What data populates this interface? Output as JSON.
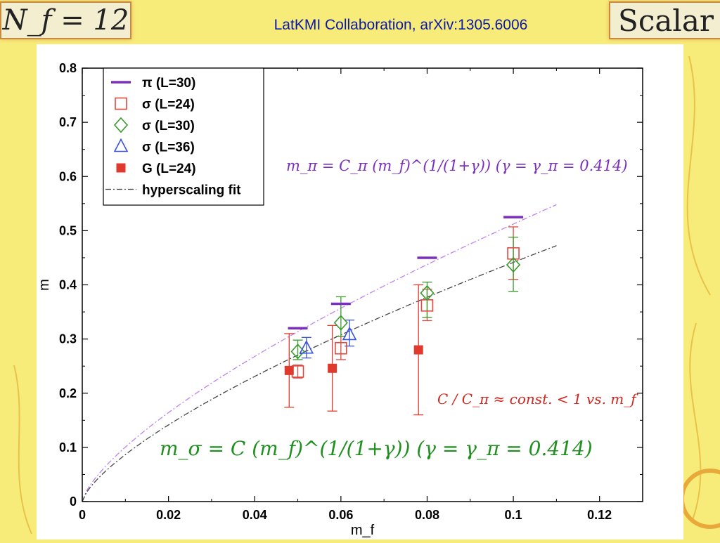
{
  "header": {
    "left_badge": "N_f = 12",
    "title": "LatKMI Collaboration, arXiv:1305.6006",
    "right_badge": "Scalar"
  },
  "colors": {
    "background": "#f7ec7a",
    "title": "#0a18a8",
    "pi": "#7b2fbe",
    "sigma24": "#e0483e",
    "sigma30": "#3a9a2c",
    "sigma36": "#3a52e0",
    "G": "#e03a2e",
    "fit_pi": "#c084f0",
    "fit_sigma": "#444444"
  },
  "annotations": {
    "eq_pi": "m_π = C_π (m_f)^(1/(1+γ))   (γ = γ_π = 0.414)",
    "eq_ratio": "C / C_π ≈ const. < 1  vs. m_f",
    "eq_sigma": "m_σ = C (m_f)^(1/(1+γ))   (γ = γ_π = 0.414)"
  },
  "chart_data": {
    "type": "scatter",
    "xlabel": "m_f",
    "ylabel": "m",
    "xlim": [
      0,
      0.13
    ],
    "ylim": [
      0,
      0.8
    ],
    "xticks": [
      "0",
      "0.02",
      "0.04",
      "0.06",
      "0.08",
      "0.1",
      "0.12"
    ],
    "yticks": [
      "0",
      "0.1",
      "0.2",
      "0.3",
      "0.4",
      "0.5",
      "0.6",
      "0.7",
      "0.8"
    ],
    "legend_position": "top-left",
    "series": [
      {
        "name": "π (L=30)",
        "marker": "dash",
        "color": "#7b2fbe",
        "points": [
          {
            "x": 0.05,
            "y": 0.32
          },
          {
            "x": 0.06,
            "y": 0.365
          },
          {
            "x": 0.08,
            "y": 0.45
          },
          {
            "x": 0.1,
            "y": 0.525
          }
        ]
      },
      {
        "name": "σ (L=24)",
        "marker": "square-open",
        "color": "#e0483e",
        "points": [
          {
            "x": 0.05,
            "y": 0.24,
            "lo": 0.228,
            "hi": 0.252
          },
          {
            "x": 0.06,
            "y": 0.283,
            "lo": 0.262,
            "hi": 0.305
          },
          {
            "x": 0.08,
            "y": 0.362,
            "lo": 0.334,
            "hi": 0.392
          },
          {
            "x": 0.1,
            "y": 0.458,
            "lo": 0.41,
            "hi": 0.507
          }
        ]
      },
      {
        "name": "σ (L=30)",
        "marker": "diamond-open",
        "color": "#3a9a2c",
        "points": [
          {
            "x": 0.05,
            "y": 0.277,
            "lo": 0.262,
            "hi": 0.298
          },
          {
            "x": 0.06,
            "y": 0.33,
            "lo": 0.305,
            "hi": 0.378
          },
          {
            "x": 0.08,
            "y": 0.385,
            "lo": 0.34,
            "hi": 0.405
          },
          {
            "x": 0.1,
            "y": 0.437,
            "lo": 0.388,
            "hi": 0.488
          }
        ]
      },
      {
        "name": "σ (L=36)",
        "marker": "triangle-open",
        "color": "#3a52e0",
        "points": [
          {
            "x": 0.052,
            "y": 0.283,
            "lo": 0.265,
            "hi": 0.303
          },
          {
            "x": 0.062,
            "y": 0.308,
            "lo": 0.287,
            "hi": 0.335
          }
        ]
      },
      {
        "name": "G (L=24)",
        "marker": "square-filled",
        "color": "#e03a2e",
        "points": [
          {
            "x": 0.048,
            "y": 0.242,
            "lo": 0.174,
            "hi": 0.31
          },
          {
            "x": 0.058,
            "y": 0.246,
            "lo": 0.167,
            "hi": 0.325
          },
          {
            "x": 0.078,
            "y": 0.28,
            "lo": 0.16,
            "hi": 0.4
          }
        ]
      },
      {
        "name": "hyperscaling fit",
        "marker": "dash-dot-line",
        "color": "#444444",
        "fits": [
          {
            "label": "pi",
            "C": 2.61,
            "gamma": 0.414,
            "x_range": [
              0,
              0.11
            ],
            "color": "#c084f0"
          },
          {
            "label": "sigma",
            "C": 2.25,
            "gamma": 0.414,
            "x_range": [
              0,
              0.11
            ],
            "color": "#444444"
          }
        ]
      }
    ]
  }
}
